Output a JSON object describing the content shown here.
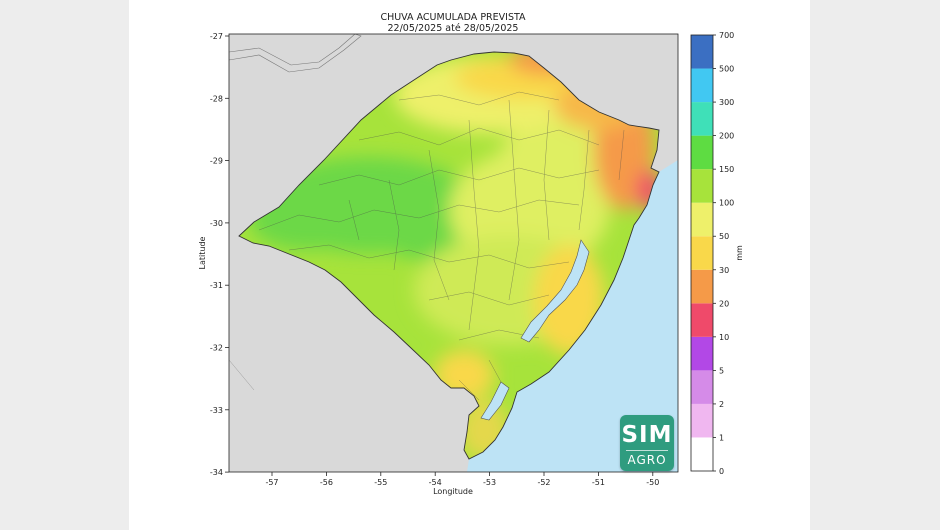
{
  "title": "CHUVA ACUMULADA PREVISTA",
  "subtitle": "22/05/2025 até 28/05/2025",
  "axes": {
    "x_label": "Longitude",
    "y_label": "Latitude",
    "x_ticks": [
      "-57",
      "-56",
      "-55",
      "-54",
      "-53",
      "-52",
      "-51",
      "-50"
    ],
    "y_ticks": [
      "-27",
      "-28",
      "-29",
      "-30",
      "-31",
      "-32",
      "-33",
      "-34"
    ]
  },
  "colorbar": {
    "unit": "mm",
    "bounds": [
      "0",
      "1",
      "2",
      "5",
      "10",
      "20",
      "30",
      "50",
      "100",
      "150",
      "200",
      "300",
      "500",
      "700"
    ],
    "colors": [
      "#ffffff",
      "#f0b7f0",
      "#d58be8",
      "#b248e6",
      "#ef4a6a",
      "#f59a48",
      "#f9d84a",
      "#eef06a",
      "#a7e33b",
      "#5edc42",
      "#3fe0b8",
      "#41c8f2",
      "#3b6fc2",
      "#4047a8"
    ]
  },
  "colors": {
    "land_outside": "#d9d9d9",
    "ocean": "#bde3f5",
    "border": "#555555"
  },
  "logo": {
    "top": "SIM",
    "bottom": "AGRO"
  }
}
